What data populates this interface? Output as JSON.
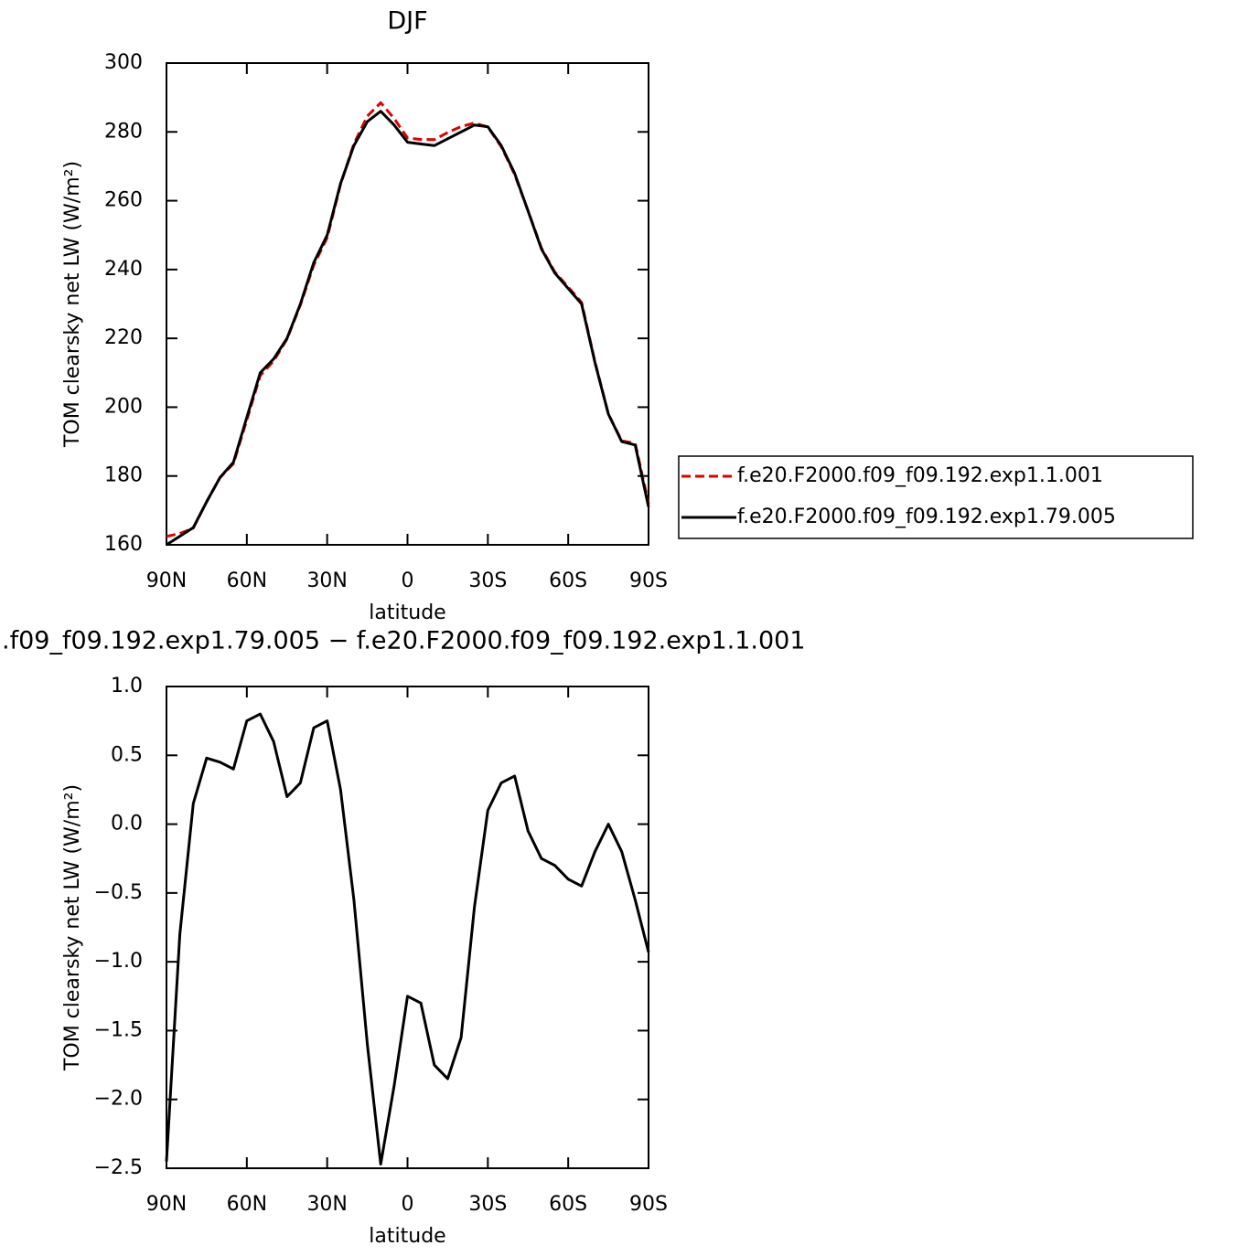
{
  "chart_data": [
    {
      "type": "line",
      "title": "DJF",
      "xlabel": "latitude",
      "ylabel": "TOM clearsky net LW (W/m²)",
      "x": [
        90,
        85,
        80,
        75,
        70,
        65,
        60,
        55,
        50,
        45,
        40,
        35,
        30,
        25,
        20,
        15,
        10,
        5,
        0,
        -5,
        -10,
        -15,
        -20,
        -25,
        -30,
        -35,
        -40,
        -45,
        -50,
        -55,
        -60,
        -65,
        -70,
        -75,
        -80,
        -85,
        -90
      ],
      "series": [
        {
          "name": "f.e20.F2000.f09_f09.192.exp1.1.001",
          "color": "#e00000",
          "dash": true,
          "values": [
            162.45,
            163.3,
            164.85,
            172.52,
            179.55,
            183.6,
            196.25,
            209.2,
            213.4,
            219.8,
            229.7,
            241.3,
            249.25,
            264.75,
            276.55,
            284.6,
            288.47,
            283.9,
            278.25,
            277.8,
            277.75,
            279.85,
            281.55,
            282.6,
            281.4,
            275.7,
            267.65,
            257.05,
            246.25,
            239.3,
            234.9,
            230.45,
            213.2,
            198,
            190.2,
            189.55,
            171.93
          ]
        },
        {
          "name": "f.e20.F2000.f09_f09.192.exp1.79.005",
          "color": "#000000",
          "dash": false,
          "values": [
            160,
            162.5,
            165,
            172.5,
            179.6,
            184,
            197,
            210,
            214,
            220,
            230,
            242,
            250,
            265,
            276,
            283,
            286,
            282,
            277,
            276.5,
            276,
            278,
            280,
            282,
            281.5,
            276,
            268,
            257,
            246,
            239,
            234.5,
            230,
            213,
            198,
            190,
            189,
            171
          ]
        }
      ],
      "xlim": [
        90,
        -90
      ],
      "xticks": [
        {
          "value": 90,
          "label": "90N"
        },
        {
          "value": 60,
          "label": "60N"
        },
        {
          "value": 30,
          "label": "30N"
        },
        0,
        {
          "value": -30,
          "label": "30S"
        },
        {
          "value": -60,
          "label": "60S"
        },
        {
          "value": -90,
          "label": "90S"
        }
      ],
      "ylim": [
        160,
        300
      ],
      "yticks": [
        160,
        180,
        200,
        220,
        240,
        260,
        280,
        300
      ],
      "legend": "right"
    },
    {
      "type": "line",
      "title": ".f09_f09.192.exp1.79.005 − f.e20.F2000.f09_f09.192.exp1.1.001",
      "xlabel": "latitude",
      "ylabel": "TOM clearsky net LW (W/m²)",
      "x": [
        90,
        85,
        80,
        75,
        70,
        65,
        60,
        55,
        50,
        45,
        40,
        35,
        30,
        25,
        20,
        15,
        10,
        5,
        0,
        -5,
        -10,
        -15,
        -20,
        -25,
        -30,
        -35,
        -40,
        -45,
        -50,
        -55,
        -60,
        -65,
        -70,
        -75,
        -80,
        -85,
        -90
      ],
      "series": [
        {
          "color": "#000000",
          "dash": false,
          "values": [
            -2.45,
            -0.8,
            0.15,
            0.48,
            0.45,
            0.4,
            0.75,
            0.8,
            0.6,
            0.2,
            0.3,
            0.7,
            0.75,
            0.25,
            -0.55,
            -1.6,
            -2.47,
            -1.9,
            -1.25,
            -1.3,
            -1.75,
            -1.85,
            -1.55,
            -0.6,
            0.1,
            0.3,
            0.35,
            -0.05,
            -0.25,
            -0.3,
            -0.4,
            -0.45,
            -0.2,
            0.0,
            -0.2,
            -0.55,
            -0.93
          ]
        }
      ],
      "xlim": [
        90,
        -90
      ],
      "xticks": [
        {
          "value": 90,
          "label": "90N"
        },
        {
          "value": 60,
          "label": "60N"
        },
        {
          "value": 30,
          "label": "30N"
        },
        0,
        {
          "value": -30,
          "label": "30S"
        },
        {
          "value": -60,
          "label": "60S"
        },
        {
          "value": -90,
          "label": "90S"
        }
      ],
      "ylim": [
        -2.5,
        1.0
      ],
      "yticks": [
        {
          "value": -2.5,
          "label": "−2.5"
        },
        {
          "value": -2.0,
          "label": "−2.0"
        },
        {
          "value": -1.5,
          "label": "−1.5"
        },
        {
          "value": -1.0,
          "label": "−1.0"
        },
        {
          "value": -0.5,
          "label": "−0.5"
        },
        {
          "value": 0.0,
          "label": "0.0"
        },
        0.5,
        {
          "value": 1.0,
          "label": "1.0"
        }
      ]
    }
  ]
}
